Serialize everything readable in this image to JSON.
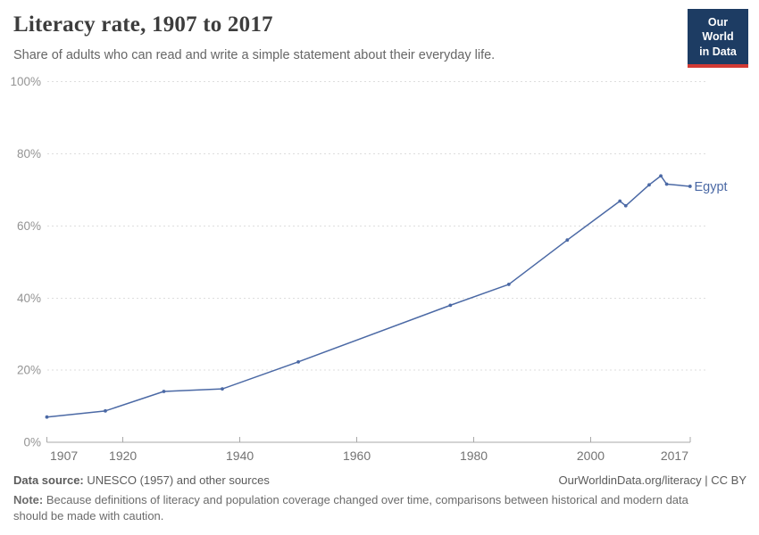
{
  "header": {
    "title": "Literacy rate, 1907 to 2017",
    "subtitle": "Share of adults who can read and write a simple statement about their everyday life."
  },
  "logo": {
    "line1": "Our World",
    "line2": "in Data",
    "bg_color": "#1d3c63",
    "bar_color": "#d23a34"
  },
  "chart_data": {
    "type": "line",
    "title": "Literacy rate, 1907 to 2017",
    "xlabel": "",
    "ylabel": "",
    "xlim": [
      1907,
      2017
    ],
    "ylim": [
      0,
      100
    ],
    "grid": "horizontal-dashed",
    "legend_position": "end-of-line-label",
    "x": [
      1907,
      1917,
      1927,
      1937,
      1950,
      1976,
      1986,
      1996,
      2005,
      2006,
      2010,
      2012,
      2013,
      2017
    ],
    "series": [
      {
        "name": "Egypt",
        "color": "#4B69A5",
        "values": [
          7.0,
          8.7,
          14.1,
          14.8,
          22.3,
          38.0,
          43.8,
          56.1,
          66.9,
          65.6,
          71.4,
          73.9,
          71.6,
          71.0
        ]
      }
    ],
    "yticks": {
      "values": [
        0,
        20,
        40,
        60,
        80,
        100
      ],
      "labels": [
        "0%",
        "20%",
        "40%",
        "60%",
        "80%",
        "100%"
      ]
    },
    "xticks": {
      "values": [
        1907,
        1920,
        1940,
        1960,
        1980,
        2000,
        2017
      ],
      "labels": [
        "1907",
        "1920",
        "1940",
        "1960",
        "1980",
        "2000",
        "2017"
      ]
    }
  },
  "colors": {
    "line": "#4B69A5",
    "gridline": "#dedede",
    "axis": "#a8a8a8",
    "ytick_label": "#949494",
    "xtick_label": "#737373"
  },
  "footer": {
    "data_source_label": "Data source:",
    "data_source_text": " UNESCO (1957) and other sources",
    "link_text": "OurWorldinData.org/literacy | CC BY",
    "note_label": "Note:",
    "note_text": " Because definitions of literacy and population coverage changed over time, comparisons between historical and modern data should be made with caution."
  }
}
